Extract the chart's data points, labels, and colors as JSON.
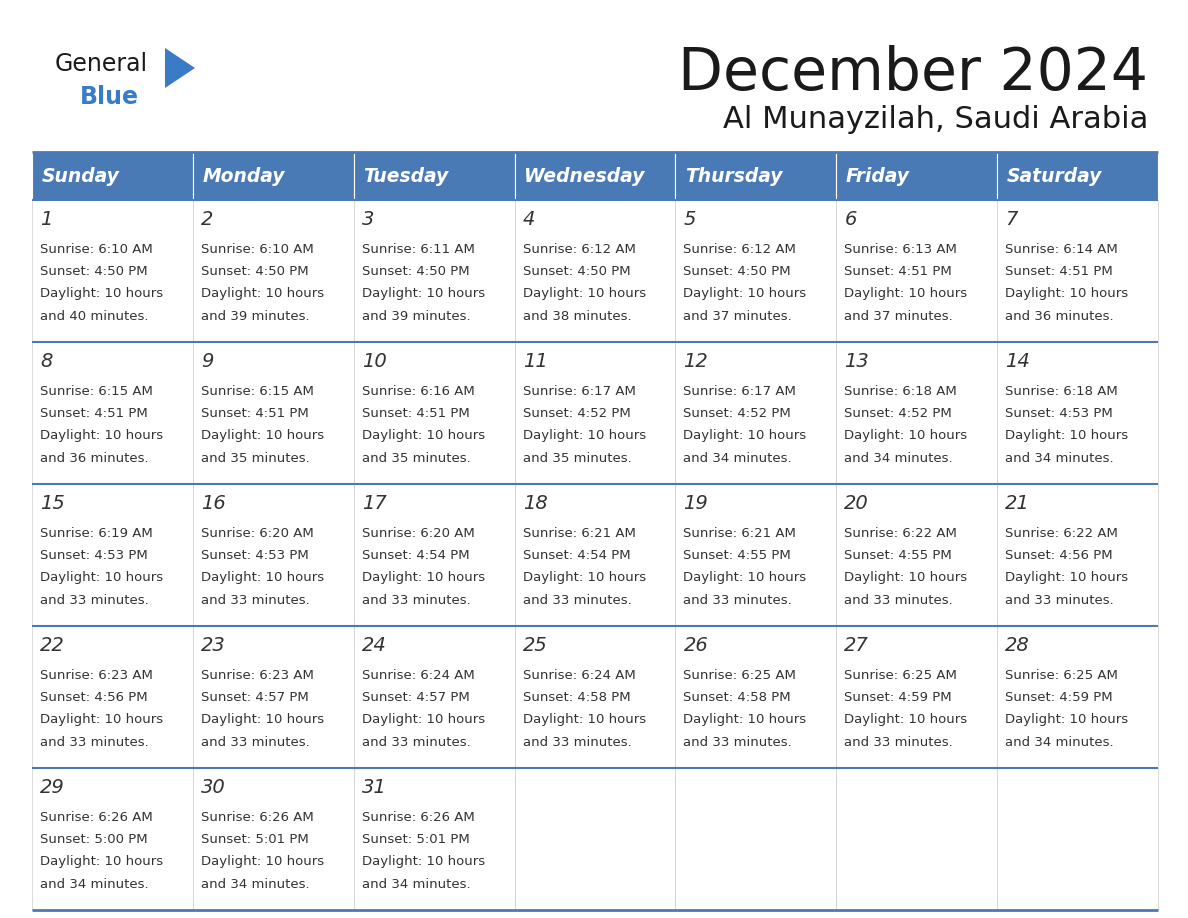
{
  "title": "December 2024",
  "subtitle": "Al Munayzilah, Saudi Arabia",
  "header_color": "#4a7ab5",
  "header_text_color": "#ffffff",
  "cell_bg_color": "#ffffff",
  "border_color": "#4a7ab5",
  "text_color": "#333333",
  "days_of_week": [
    "Sunday",
    "Monday",
    "Tuesday",
    "Wednesday",
    "Thursday",
    "Friday",
    "Saturday"
  ],
  "calendar_data": [
    [
      {
        "day": 1,
        "sunrise": "6:10 AM",
        "sunset": "4:50 PM",
        "dl1": "Daylight: 10 hours",
        "dl2": "and 40 minutes."
      },
      {
        "day": 2,
        "sunrise": "6:10 AM",
        "sunset": "4:50 PM",
        "dl1": "Daylight: 10 hours",
        "dl2": "and 39 minutes."
      },
      {
        "day": 3,
        "sunrise": "6:11 AM",
        "sunset": "4:50 PM",
        "dl1": "Daylight: 10 hours",
        "dl2": "and 39 minutes."
      },
      {
        "day": 4,
        "sunrise": "6:12 AM",
        "sunset": "4:50 PM",
        "dl1": "Daylight: 10 hours",
        "dl2": "and 38 minutes."
      },
      {
        "day": 5,
        "sunrise": "6:12 AM",
        "sunset": "4:50 PM",
        "dl1": "Daylight: 10 hours",
        "dl2": "and 37 minutes."
      },
      {
        "day": 6,
        "sunrise": "6:13 AM",
        "sunset": "4:51 PM",
        "dl1": "Daylight: 10 hours",
        "dl2": "and 37 minutes."
      },
      {
        "day": 7,
        "sunrise": "6:14 AM",
        "sunset": "4:51 PM",
        "dl1": "Daylight: 10 hours",
        "dl2": "and 36 minutes."
      }
    ],
    [
      {
        "day": 8,
        "sunrise": "6:15 AM",
        "sunset": "4:51 PM",
        "dl1": "Daylight: 10 hours",
        "dl2": "and 36 minutes."
      },
      {
        "day": 9,
        "sunrise": "6:15 AM",
        "sunset": "4:51 PM",
        "dl1": "Daylight: 10 hours",
        "dl2": "and 35 minutes."
      },
      {
        "day": 10,
        "sunrise": "6:16 AM",
        "sunset": "4:51 PM",
        "dl1": "Daylight: 10 hours",
        "dl2": "and 35 minutes."
      },
      {
        "day": 11,
        "sunrise": "6:17 AM",
        "sunset": "4:52 PM",
        "dl1": "Daylight: 10 hours",
        "dl2": "and 35 minutes."
      },
      {
        "day": 12,
        "sunrise": "6:17 AM",
        "sunset": "4:52 PM",
        "dl1": "Daylight: 10 hours",
        "dl2": "and 34 minutes."
      },
      {
        "day": 13,
        "sunrise": "6:18 AM",
        "sunset": "4:52 PM",
        "dl1": "Daylight: 10 hours",
        "dl2": "and 34 minutes."
      },
      {
        "day": 14,
        "sunrise": "6:18 AM",
        "sunset": "4:53 PM",
        "dl1": "Daylight: 10 hours",
        "dl2": "and 34 minutes."
      }
    ],
    [
      {
        "day": 15,
        "sunrise": "6:19 AM",
        "sunset": "4:53 PM",
        "dl1": "Daylight: 10 hours",
        "dl2": "and 33 minutes."
      },
      {
        "day": 16,
        "sunrise": "6:20 AM",
        "sunset": "4:53 PM",
        "dl1": "Daylight: 10 hours",
        "dl2": "and 33 minutes."
      },
      {
        "day": 17,
        "sunrise": "6:20 AM",
        "sunset": "4:54 PM",
        "dl1": "Daylight: 10 hours",
        "dl2": "and 33 minutes."
      },
      {
        "day": 18,
        "sunrise": "6:21 AM",
        "sunset": "4:54 PM",
        "dl1": "Daylight: 10 hours",
        "dl2": "and 33 minutes."
      },
      {
        "day": 19,
        "sunrise": "6:21 AM",
        "sunset": "4:55 PM",
        "dl1": "Daylight: 10 hours",
        "dl2": "and 33 minutes."
      },
      {
        "day": 20,
        "sunrise": "6:22 AM",
        "sunset": "4:55 PM",
        "dl1": "Daylight: 10 hours",
        "dl2": "and 33 minutes."
      },
      {
        "day": 21,
        "sunrise": "6:22 AM",
        "sunset": "4:56 PM",
        "dl1": "Daylight: 10 hours",
        "dl2": "and 33 minutes."
      }
    ],
    [
      {
        "day": 22,
        "sunrise": "6:23 AM",
        "sunset": "4:56 PM",
        "dl1": "Daylight: 10 hours",
        "dl2": "and 33 minutes."
      },
      {
        "day": 23,
        "sunrise": "6:23 AM",
        "sunset": "4:57 PM",
        "dl1": "Daylight: 10 hours",
        "dl2": "and 33 minutes."
      },
      {
        "day": 24,
        "sunrise": "6:24 AM",
        "sunset": "4:57 PM",
        "dl1": "Daylight: 10 hours",
        "dl2": "and 33 minutes."
      },
      {
        "day": 25,
        "sunrise": "6:24 AM",
        "sunset": "4:58 PM",
        "dl1": "Daylight: 10 hours",
        "dl2": "and 33 minutes."
      },
      {
        "day": 26,
        "sunrise": "6:25 AM",
        "sunset": "4:58 PM",
        "dl1": "Daylight: 10 hours",
        "dl2": "and 33 minutes."
      },
      {
        "day": 27,
        "sunrise": "6:25 AM",
        "sunset": "4:59 PM",
        "dl1": "Daylight: 10 hours",
        "dl2": "and 33 minutes."
      },
      {
        "day": 28,
        "sunrise": "6:25 AM",
        "sunset": "4:59 PM",
        "dl1": "Daylight: 10 hours",
        "dl2": "and 34 minutes."
      }
    ],
    [
      {
        "day": 29,
        "sunrise": "6:26 AM",
        "sunset": "5:00 PM",
        "dl1": "Daylight: 10 hours",
        "dl2": "and 34 minutes."
      },
      {
        "day": 30,
        "sunrise": "6:26 AM",
        "sunset": "5:01 PM",
        "dl1": "Daylight: 10 hours",
        "dl2": "and 34 minutes."
      },
      {
        "day": 31,
        "sunrise": "6:26 AM",
        "sunset": "5:01 PM",
        "dl1": "Daylight: 10 hours",
        "dl2": "and 34 minutes."
      },
      null,
      null,
      null,
      null
    ]
  ],
  "logo_color_general": "#1a1a1a",
  "logo_color_blue": "#3a7bc8",
  "logo_triangle_color": "#3a7bc8"
}
